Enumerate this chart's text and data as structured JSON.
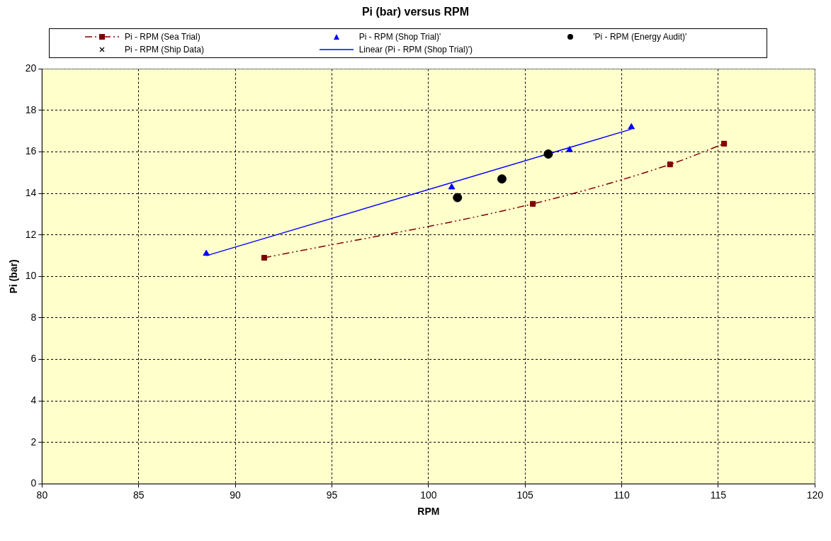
{
  "chart_data": {
    "type": "scatter",
    "title": "Pi (bar) versus RPM",
    "xlabel": "RPM",
    "ylabel": "Pi (bar)",
    "xlim": [
      80,
      120
    ],
    "xticks": [
      80,
      85,
      90,
      95,
      100,
      105,
      110,
      115,
      120
    ],
    "ylim": [
      0,
      20
    ],
    "yticks": [
      0,
      2,
      4,
      6,
      8,
      10,
      12,
      14,
      16,
      18,
      20
    ],
    "grid": true,
    "legend": "top",
    "series": [
      {
        "name": "Pi - RPM (Sea Trial)",
        "type": "line",
        "color": "#800000",
        "marker": "square",
        "line_style": "dashed",
        "x": [
          91.5,
          105.4,
          112.5,
          115.3
        ],
        "values": [
          10.9,
          13.5,
          15.4,
          16.4
        ]
      },
      {
        "name": "Pi - RPM (Shop Trial)'",
        "type": "scatter",
        "color": "#0000ff",
        "marker": "triangle",
        "x": [
          88.5,
          101.2,
          107.3,
          110.5
        ],
        "values": [
          11.1,
          14.3,
          16.1,
          17.2
        ]
      },
      {
        "name": "'Pi - RPM (Energy Audit)'",
        "type": "scatter",
        "color": "#000000",
        "marker": "circle",
        "x": [
          101.5,
          103.8,
          106.2
        ],
        "values": [
          13.8,
          14.7,
          15.9
        ]
      },
      {
        "name": "Pi - RPM (Ship Data)",
        "type": "scatter",
        "color": "#000000",
        "marker": "cross"
      },
      {
        "name": "Linear (Pi - RPM (Shop Trial)')",
        "type": "line",
        "color": "#0000ff",
        "marker": "none",
        "line_style": "solid",
        "x": [
          88.5,
          110.5
        ],
        "values": [
          11.0,
          17.1
        ]
      }
    ]
  }
}
